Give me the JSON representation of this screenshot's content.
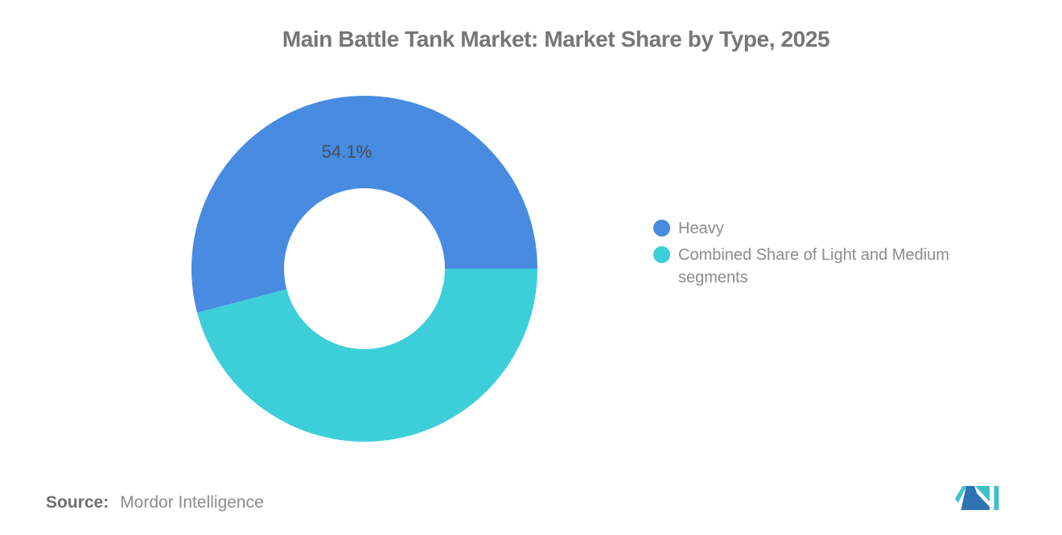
{
  "title": "Main Battle Tank Market: Market Share by Type, 2025",
  "chart_data": {
    "type": "pie",
    "subtype": "donut",
    "title": "Main Battle Tank Market: Market Share by Type, 2025",
    "unit": "%",
    "series": [
      {
        "label": "Heavy",
        "value": 54.1,
        "color": "#488BE0",
        "data_label": "54.1%"
      },
      {
        "label": "Combined Share of Light and Medium segments",
        "value": 45.9,
        "color": "#3DCFD9",
        "data_label": ""
      }
    ],
    "start_angle_deg": 0,
    "direction": "counterclockwise",
    "legend_position": "right",
    "data_label_color": "#464e55",
    "background": "#ffffff"
  },
  "legend": {
    "items": [
      {
        "label": "Heavy",
        "color": "#488BE0"
      },
      {
        "label": "Combined Share of Light and Medium segments",
        "color": "#3DCFD9"
      }
    ]
  },
  "source": {
    "label": "Source:",
    "value": "Mordor Intelligence"
  },
  "logo": {
    "alt": "Mordor Intelligence logo",
    "teal": "#3FC0CB",
    "blue": "#2D72B2"
  }
}
